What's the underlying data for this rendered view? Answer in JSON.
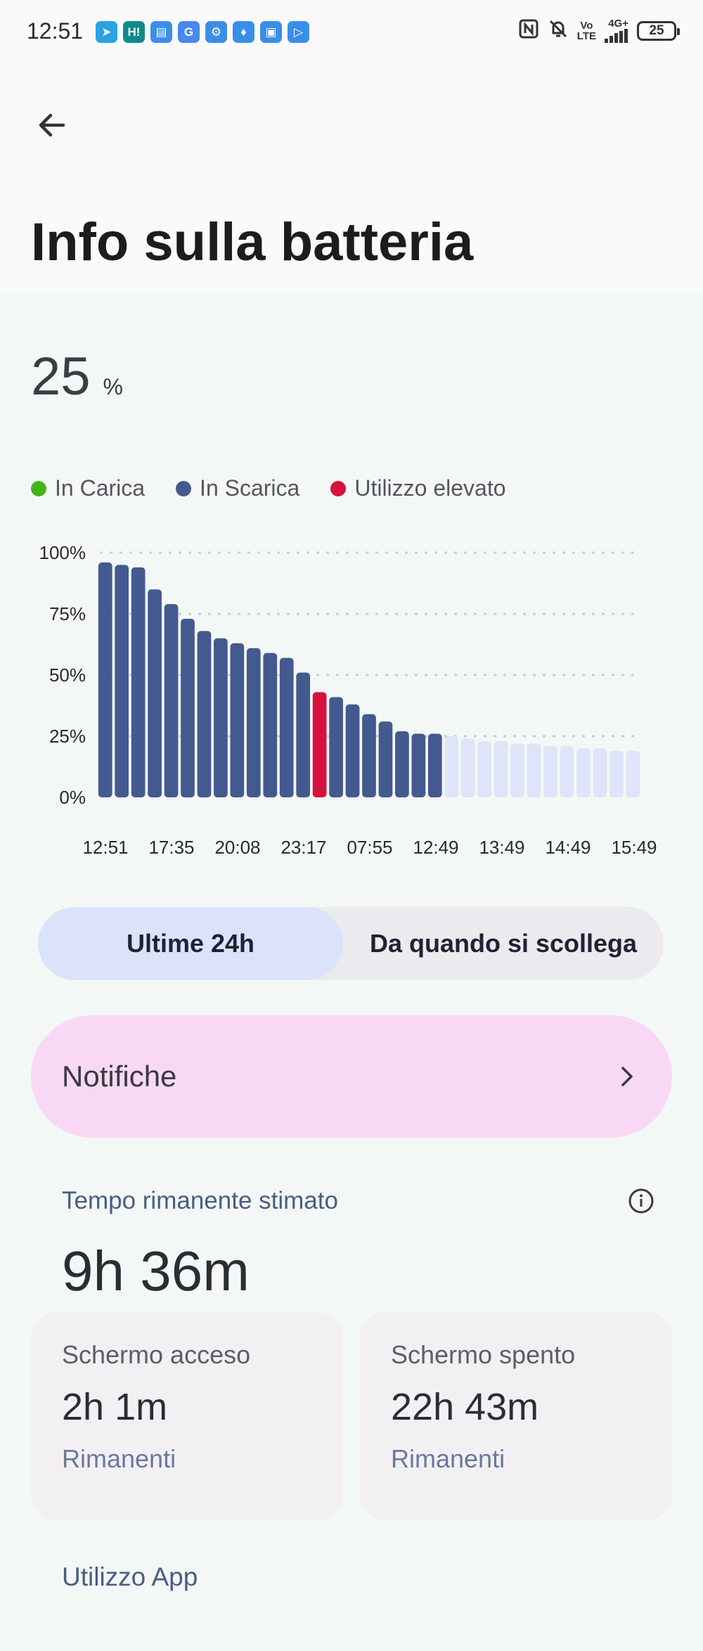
{
  "status_bar": {
    "time": "12:51",
    "notifications": [
      {
        "icon": "telegram-icon",
        "glyph": "➤",
        "color": "#2aa3e0"
      },
      {
        "icon": "h-app-icon",
        "glyph": "H!",
        "color": "#0f8a8a"
      },
      {
        "icon": "mail-icon",
        "glyph": "▤",
        "color": "#3b8ee8"
      },
      {
        "icon": "google-icon",
        "glyph": "G",
        "color": "#4a87ee"
      },
      {
        "icon": "settings-app-icon",
        "glyph": "⚙",
        "color": "#3b8ee8"
      },
      {
        "icon": "shield-app-icon",
        "glyph": "♦",
        "color": "#3b8ee8"
      },
      {
        "icon": "clipboard-app-icon",
        "glyph": "▣",
        "color": "#3b8ee8"
      },
      {
        "icon": "play-app-icon",
        "glyph": "▷",
        "color": "#3b8ee8"
      }
    ],
    "network_vo": "Vo",
    "network_lte": "LTE",
    "network_type": "4G+",
    "battery": "25"
  },
  "header": {
    "title": "Info sulla batteria"
  },
  "battery": {
    "percent": "25",
    "unit": "%"
  },
  "legend": {
    "charging": {
      "label": "In Carica",
      "color": "#44b318"
    },
    "discharging": {
      "label": "In Scarica",
      "color": "#44598f"
    },
    "high_usage": {
      "label": "Utilizzo elevato",
      "color": "#d6123c"
    }
  },
  "chart_data": {
    "type": "bar",
    "y_ticks": [
      "100%",
      "75%",
      "50%",
      "25%",
      "0%"
    ],
    "ylim": [
      0,
      100
    ],
    "x_tick_labels": [
      "12:51",
      "17:35",
      "20:08",
      "23:17",
      "07:55",
      "12:49",
      "13:49",
      "14:49",
      "15:49"
    ],
    "series": [
      {
        "values": [
          96,
          95,
          94,
          85,
          79,
          73,
          68,
          65,
          63,
          61,
          59,
          57,
          51,
          43,
          41,
          38,
          34,
          31,
          27,
          26,
          26
        ],
        "status": [
          "d",
          "d",
          "d",
          "d",
          "d",
          "d",
          "d",
          "d",
          "d",
          "d",
          "d",
          "d",
          "d",
          "h",
          "d",
          "d",
          "d",
          "d",
          "d",
          "d",
          "d"
        ]
      },
      {
        "values": [
          25,
          24,
          23,
          23,
          22,
          22,
          21,
          21,
          20,
          20,
          19,
          19
        ],
        "status": [
          "p",
          "p",
          "p",
          "p",
          "p",
          "p",
          "p",
          "p",
          "p",
          "p",
          "p",
          "p"
        ]
      }
    ],
    "colors": {
      "d": "#44598f",
      "h": "#d6123c",
      "p": "#dfe4f8"
    },
    "grid": true
  },
  "tabs": {
    "last24h": "Ultime 24h",
    "since_unplug": "Da quando si scollega"
  },
  "notifications_card": {
    "label": "Notifiche"
  },
  "estimate": {
    "label": "Tempo rimanente stimato",
    "value": "9h 36m"
  },
  "screen_on": {
    "title": "Schermo acceso",
    "value": "2h 1m",
    "sub": "Rimanenti"
  },
  "screen_off": {
    "title": "Schermo spento",
    "value": "22h 43m",
    "sub": "Rimanenti"
  },
  "app_usage": {
    "label": "Utilizzo App"
  }
}
